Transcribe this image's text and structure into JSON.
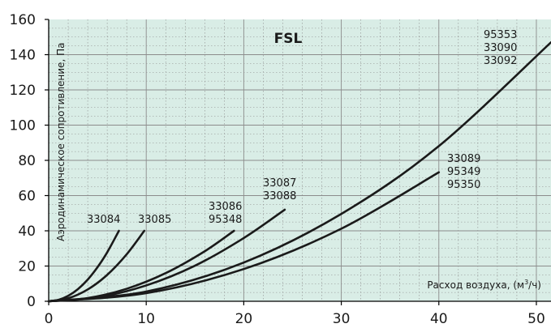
{
  "chart_data": {
    "type": "line",
    "title": "FSL",
    "xlabel_prefix": "Расход воздуха, (м",
    "xlabel_sup": "3",
    "xlabel_suffix": "/ч)",
    "ylabel": "Аэродинамическое сопротивление, Па",
    "xlim": [
      0,
      51.5
    ],
    "ylim": [
      0,
      160
    ],
    "x_ticks": [
      "0",
      "10",
      "20",
      "30",
      "40",
      "50"
    ],
    "y_ticks": [
      "0",
      "20",
      "40",
      "60",
      "80",
      "100",
      "120",
      "140",
      "160"
    ],
    "grid": true,
    "background_color": "#d9ede6",
    "grid_color": "#8c8c8c",
    "line_color": "#1a1a1a",
    "series": [
      {
        "label_lines": [
          "33084"
        ],
        "x": [
          0,
          1,
          2,
          3,
          4,
          5,
          6,
          7.2
        ],
        "y": [
          0,
          0.8,
          3.1,
          6.9,
          12.3,
          19.3,
          27.8,
          40
        ]
      },
      {
        "label_lines": [
          "33085"
        ],
        "x": [
          0,
          2,
          4,
          6,
          8,
          9.8
        ],
        "y": [
          0,
          1.7,
          6.7,
          15,
          26.7,
          40
        ]
      },
      {
        "label_lines": [
          "33086",
          "95348"
        ],
        "x": [
          0,
          4,
          8,
          12,
          16,
          19
        ],
        "y": [
          0,
          1.8,
          7.1,
          16,
          28.4,
          40
        ]
      },
      {
        "label_lines": [
          "33087",
          "33088"
        ],
        "x": [
          0,
          5,
          10,
          15,
          20,
          24.2
        ],
        "y": [
          0,
          2.2,
          9,
          20.2,
          35.9,
          52
        ]
      },
      {
        "label_lines": [
          "95353",
          "33090",
          "33092"
        ],
        "x": [
          0,
          10,
          20,
          30,
          40,
          51.5
        ],
        "y": [
          0,
          5.5,
          22,
          49.6,
          88.1,
          147
        ]
      },
      {
        "label_lines": [
          "33089",
          "95349",
          "95350"
        ],
        "x": [
          0,
          10,
          20,
          30,
          40
        ],
        "y": [
          0,
          4.6,
          18.3,
          41.2,
          73.2
        ]
      }
    ]
  }
}
